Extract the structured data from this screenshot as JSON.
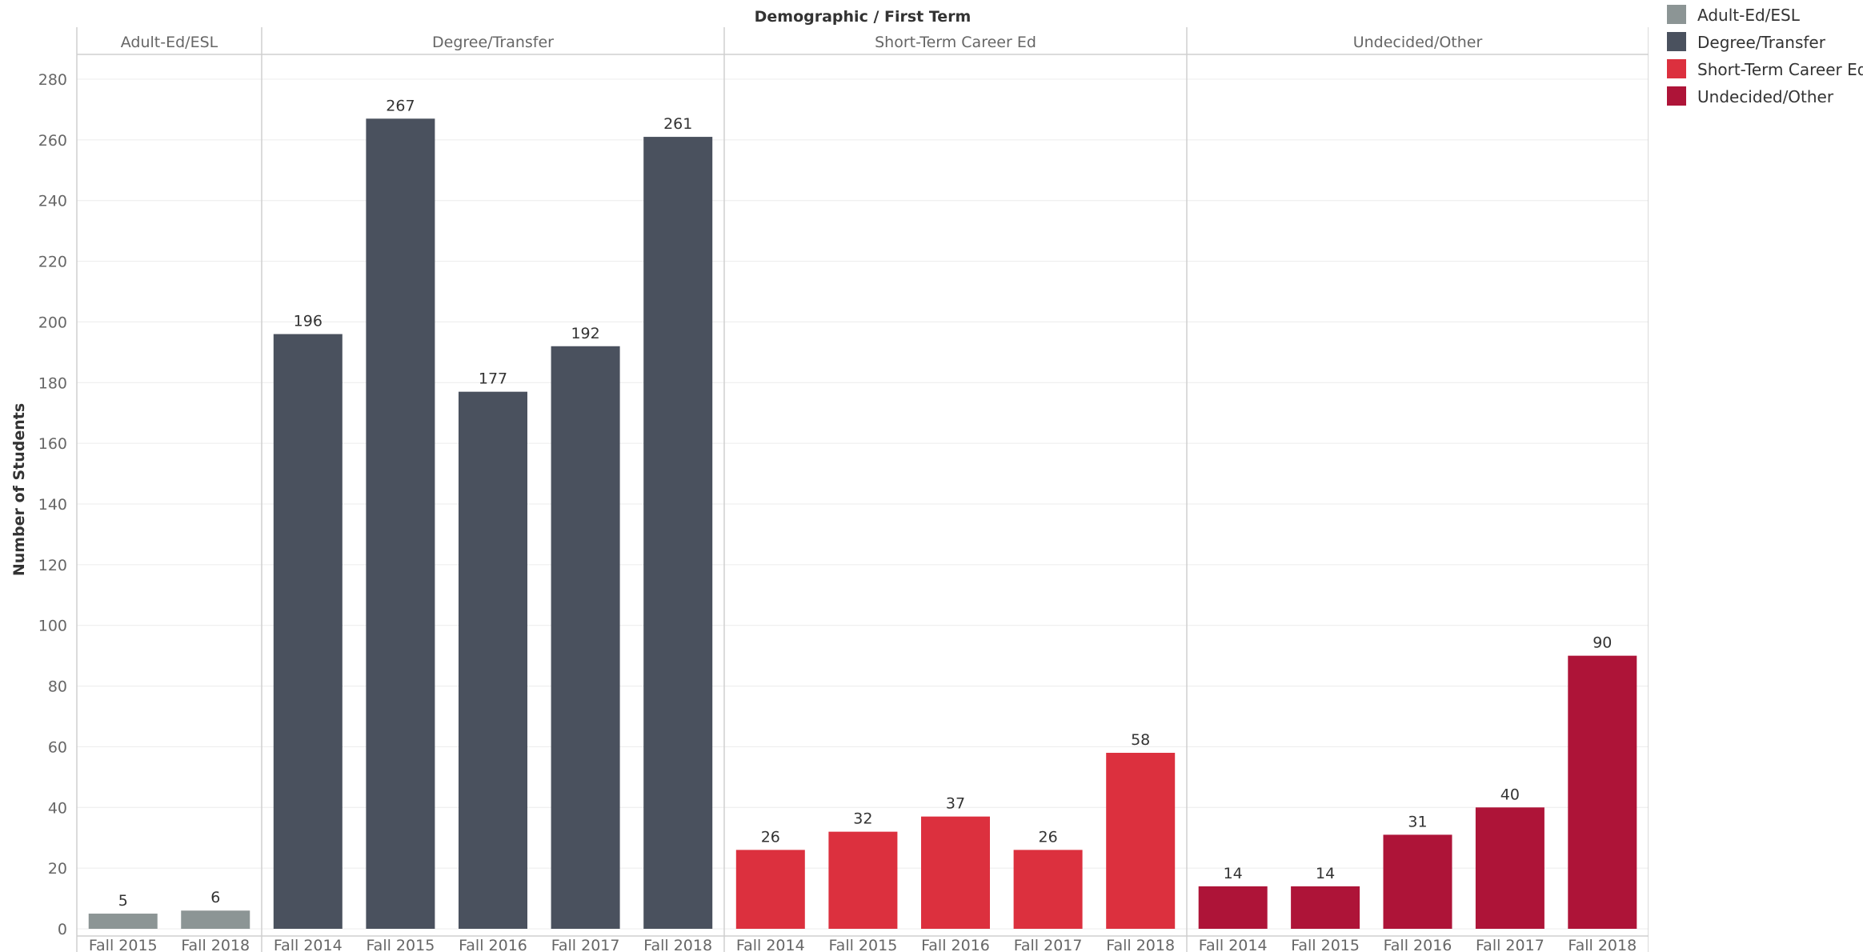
{
  "chart_data": {
    "type": "bar",
    "title": "Demographic  /  First Term",
    "ylabel": "Number of Students",
    "ylim": [
      0,
      280
    ],
    "yticks": [
      0,
      20,
      40,
      60,
      80,
      100,
      120,
      140,
      160,
      180,
      200,
      220,
      240,
      260,
      280
    ],
    "grid": true,
    "legend_position": "top-right",
    "panels": [
      {
        "name": "Adult-Ed/ESL",
        "color": "#8c9595",
        "categories": [
          "Fall 2015",
          "Fall 2018"
        ],
        "values": [
          5,
          6
        ]
      },
      {
        "name": "Degree/Transfer",
        "color": "#4a515e",
        "categories": [
          "Fall 2014",
          "Fall 2015",
          "Fall 2016",
          "Fall 2017",
          "Fall 2018"
        ],
        "values": [
          196,
          267,
          177,
          192,
          261
        ]
      },
      {
        "name": "Short-Term Career Ed",
        "color": "#dc303e",
        "categories": [
          "Fall 2014",
          "Fall 2015",
          "Fall 2016",
          "Fall 2017",
          "Fall 2018"
        ],
        "values": [
          26,
          32,
          37,
          26,
          58
        ]
      },
      {
        "name": "Undecided/Other",
        "color": "#ae1438",
        "categories": [
          "Fall 2014",
          "Fall 2015",
          "Fall 2016",
          "Fall 2017",
          "Fall 2018"
        ],
        "values": [
          14,
          14,
          31,
          40,
          90
        ]
      }
    ],
    "legend": [
      {
        "label": "Adult-Ed/ESL",
        "color": "#8c9595"
      },
      {
        "label": "Degree/Transfer",
        "color": "#4a515e"
      },
      {
        "label": "Short-Term Career Ed",
        "color": "#dc303e"
      },
      {
        "label": "Undecided/Other",
        "color": "#ae1438"
      }
    ]
  }
}
